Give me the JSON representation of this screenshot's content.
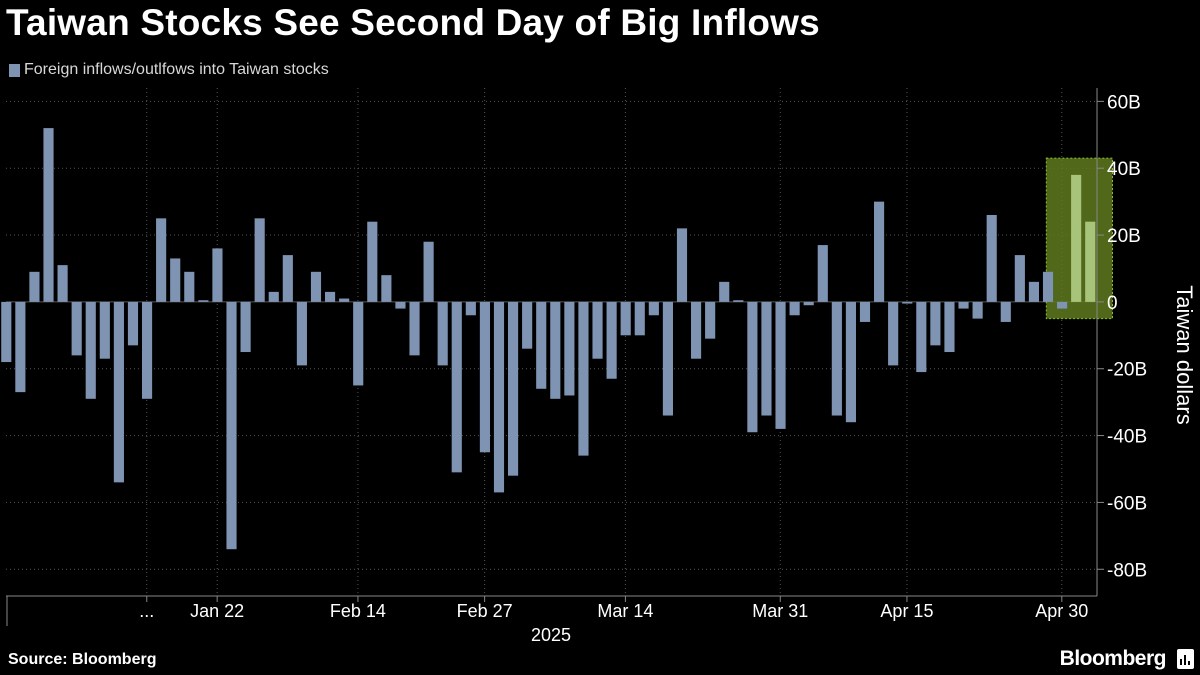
{
  "title": "Taiwan Stocks See Second Day of Big Inflows",
  "source": "Source: Bloomberg",
  "brand": "Bloomberg",
  "colors": {
    "bar": "#7f93b3",
    "highlight_fill": "#5f7a1e",
    "highlight_stroke": "#8fbf2a",
    "highlight_bar": "#a8c47a",
    "grid": "#555555",
    "background": "#000000"
  },
  "chart_data": {
    "type": "bar",
    "legend": [
      "Foreign inflows/outlfows into Taiwan stocks"
    ],
    "ylabel": "Taiwan dollars",
    "ylim": [
      -88,
      64
    ],
    "yticks": [
      60,
      40,
      20,
      0,
      -20,
      -40,
      -60,
      -80
    ],
    "ytick_labels": [
      "60B",
      "40B",
      "20B",
      "0",
      "-20B",
      "-40B",
      "-60B",
      "-80B"
    ],
    "xtick_labels": [
      "...",
      "Jan 22",
      "Feb 14",
      "Feb 27",
      "Mar 14",
      "Mar 31",
      "Apr 15",
      "Apr 30"
    ],
    "xtick_index": [
      10,
      15,
      25,
      34,
      44,
      55,
      64,
      75
    ],
    "year_label": "2025",
    "highlight_range": [
      74,
      79
    ],
    "highlight_ylim": [
      -5,
      43
    ],
    "series": [
      {
        "name": "Foreign inflows/outlfows into Taiwan stocks",
        "values": [
          -18,
          -27,
          9,
          52,
          11,
          -16,
          -29,
          -17,
          -54,
          -13,
          -29,
          25,
          13,
          9,
          0.5,
          16,
          -74,
          -15,
          25,
          3,
          14,
          -19,
          9,
          3,
          1,
          -25,
          24,
          8,
          -2,
          -16,
          18,
          -19,
          -51,
          -4,
          -45,
          -57,
          -52,
          -14,
          -26,
          -29,
          -28,
          -46,
          -17,
          -23,
          -10,
          -10,
          -4,
          -34,
          22,
          -17,
          -11,
          6,
          0.5,
          -39,
          -34,
          -38,
          -4,
          -1,
          17,
          -34,
          -36,
          -6,
          30,
          -19,
          -0.5,
          -21,
          -13,
          -15,
          -2,
          -5,
          26,
          -6,
          14,
          6,
          9,
          -2,
          38,
          24
        ]
      }
    ]
  }
}
